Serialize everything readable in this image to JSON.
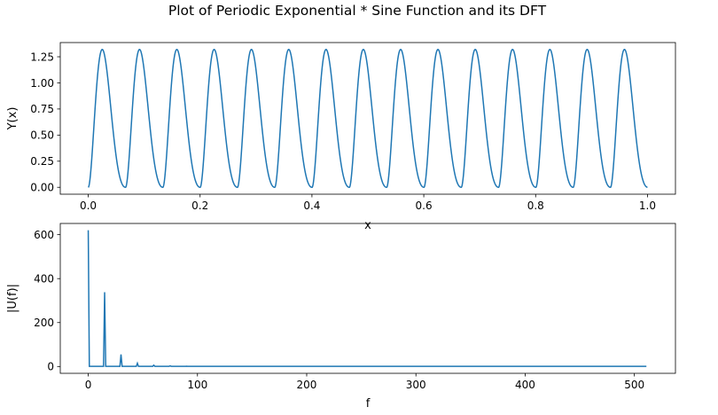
{
  "title": "Plot of Periodic Exponential * Sine Function and its DFT",
  "line_color": "#1f77b4",
  "chart_data": [
    {
      "type": "line",
      "xlabel": "x",
      "ylabel": "Y(x)",
      "xlim": [
        -0.05,
        1.05
      ],
      "ylim": [
        -0.066,
        1.386
      ],
      "xticks": [
        0.0,
        0.2,
        0.4,
        0.6,
        0.8,
        1.0
      ],
      "xtick_labels": [
        "0.0",
        "0.2",
        "0.4",
        "0.6",
        "0.8",
        "1.0"
      ],
      "yticks": [
        0.0,
        0.25,
        0.5,
        0.75,
        1.0,
        1.25
      ],
      "ytick_labels": [
        "0.00",
        "0.25",
        "0.50",
        "0.75",
        "1.00",
        "1.25"
      ],
      "grid": false,
      "series": [
        {
          "description": "periodic pulses, 15 periods over [0,1], period 1/15",
          "period": 0.0667,
          "x_range": [
            0,
            1
          ],
          "peak_x": [
            0.022,
            0.089,
            0.155,
            0.222,
            0.289,
            0.355,
            0.422,
            0.489,
            0.555,
            0.622,
            0.689,
            0.755,
            0.822,
            0.889,
            0.955
          ],
          "peak_y": 1.32,
          "min_y": 0.0
        }
      ]
    },
    {
      "type": "line",
      "xlabel": "f",
      "ylabel": "|U(f)|",
      "xlim": [
        -25.6,
        537.6
      ],
      "ylim": [
        -31,
        651
      ],
      "xticks": [
        0,
        100,
        200,
        300,
        400,
        500
      ],
      "xtick_labels": [
        "0",
        "100",
        "200",
        "300",
        "400",
        "500"
      ],
      "yticks": [
        0,
        200,
        400,
        600
      ],
      "ytick_labels": [
        "0",
        "200",
        "400",
        "600"
      ],
      "grid": false,
      "series": [
        {
          "x_range": [
            0,
            511
          ],
          "baseline": 1,
          "peaks": [
            {
              "f": 0,
              "value": 620
            },
            {
              "f": 15,
              "value": 338
            },
            {
              "f": 30,
              "value": 55
            },
            {
              "f": 45,
              "value": 15
            },
            {
              "f": 60,
              "value": 6
            },
            {
              "f": 75,
              "value": 3
            },
            {
              "f": 90,
              "value": 1.5
            }
          ]
        }
      ]
    }
  ]
}
